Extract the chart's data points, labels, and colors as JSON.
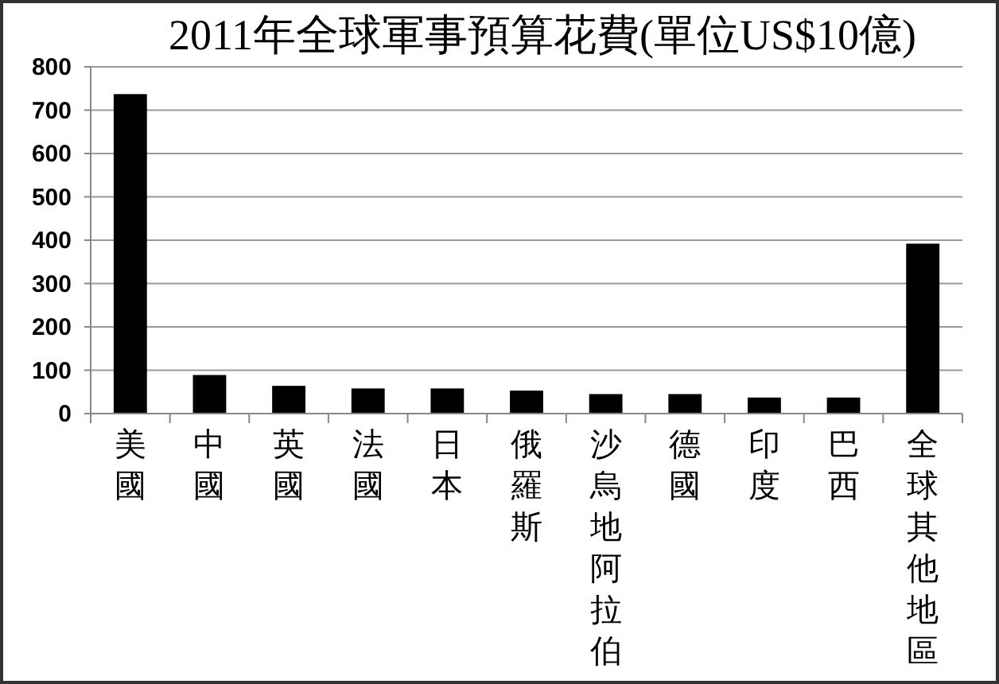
{
  "chart_data": {
    "type": "bar",
    "title": "2011年全球軍事預算花費(單位US$10億)",
    "categories": [
      "美國",
      "中國",
      "英國",
      "法國",
      "日本",
      "俄羅斯",
      "沙烏地阿拉伯",
      "德國",
      "印度",
      "巴西",
      "全球其他地區"
    ],
    "values": [
      737,
      89,
      64,
      58,
      58,
      53,
      45,
      45,
      37,
      37,
      392
    ],
    "color": "#000000",
    "ylim": [
      0,
      800
    ],
    "yticks": [
      0,
      100,
      200,
      300,
      400,
      500,
      600,
      700,
      800
    ],
    "grid": "y"
  }
}
